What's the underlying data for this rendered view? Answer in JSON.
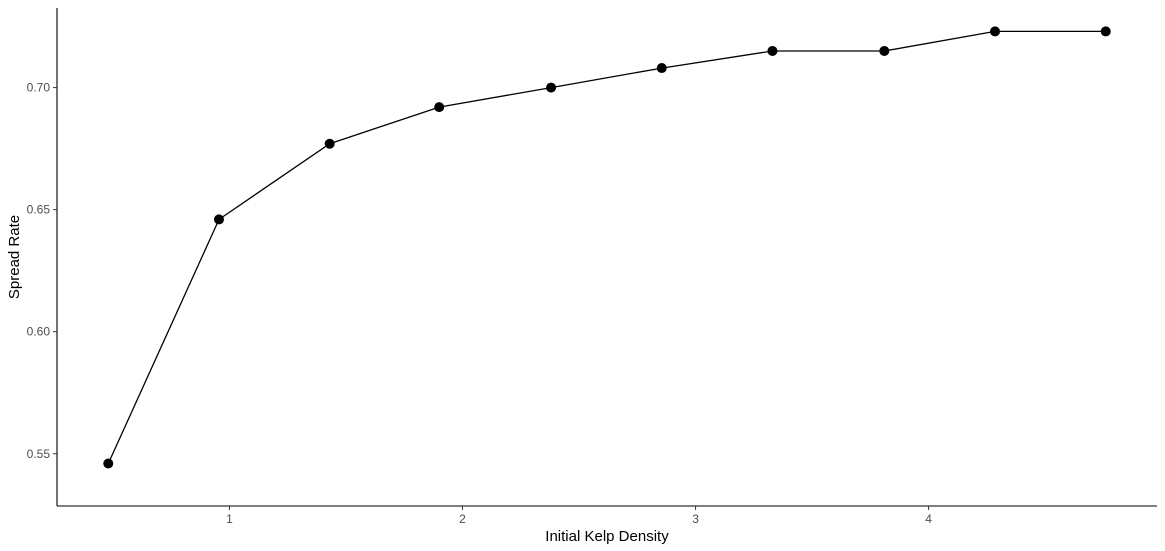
{
  "chart_data": {
    "type": "line",
    "title": "",
    "xlabel": "Initial Kelp Density",
    "ylabel": "Spread Rate",
    "xlim": [
      0.26,
      4.98
    ],
    "ylim": [
      0.5286,
      0.7326
    ],
    "x_ticks": [
      1,
      2,
      3,
      4
    ],
    "x_tick_labels": [
      "1",
      "2",
      "3",
      "4"
    ],
    "y_ticks": [
      0.55,
      0.6,
      0.65,
      0.7
    ],
    "y_tick_labels": [
      "0.55",
      "0.60",
      "0.65",
      "0.70"
    ],
    "grid": false,
    "legend": "none",
    "series": [
      {
        "x": [
          0.48,
          0.955,
          1.43,
          1.9,
          2.38,
          2.855,
          3.33,
          3.81,
          4.285,
          4.76
        ],
        "y": [
          0.546,
          0.646,
          0.677,
          0.692,
          0.7,
          0.708,
          0.715,
          0.715,
          0.723,
          0.723
        ],
        "color": "#000000"
      }
    ]
  }
}
